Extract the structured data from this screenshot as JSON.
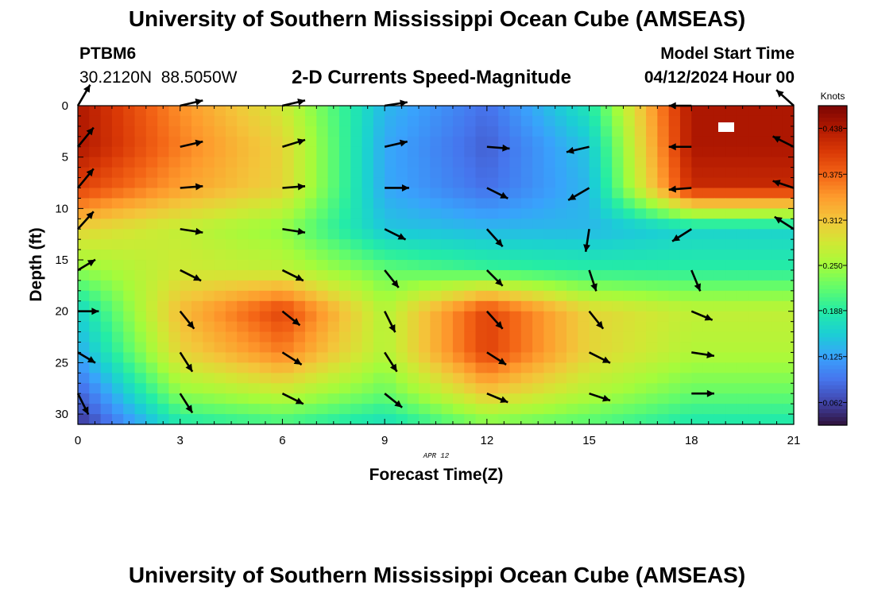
{
  "header": {
    "title": "University of Southern Mississippi Ocean Cube (AMSEAS)",
    "station": "PTBM6",
    "coords": "30.2120N  88.5050W",
    "subtitle": "2-D Currents Speed-Magnitude",
    "model_start_label": "Model Start Time",
    "model_start_value": "04/12/2024 Hour 00"
  },
  "footer": {
    "title": "University of Southern Mississippi Ocean Cube (AMSEAS)"
  },
  "chart_data": {
    "type": "heatmap",
    "title": "2-D Currents Speed-Magnitude",
    "xlabel": "Forecast Time(Z)",
    "ylabel": "Depth (ft)",
    "date_label": "APR 12",
    "xlim": [
      0,
      21
    ],
    "ylim": [
      31,
      0
    ],
    "x_ticks": [
      0,
      3,
      6,
      9,
      12,
      15,
      18,
      21
    ],
    "y_ticks": [
      0,
      5,
      10,
      15,
      20,
      25,
      30
    ],
    "colorbar": {
      "label": "Knots",
      "ticks": [
        "0.062",
        "0.125",
        "0.188",
        "0.250",
        "0.312",
        "0.375",
        "0.438"
      ],
      "min": 0.031,
      "max": 0.469,
      "colors": [
        "#30123b",
        "#4145ab",
        "#4675ed",
        "#39a2fc",
        "#1bcfd4",
        "#24eca6",
        "#61fc6c",
        "#a4fc3b",
        "#d1e834",
        "#f3c63a",
        "#fe9b2d",
        "#f36315",
        "#d93806",
        "#b11901",
        "#7a0403"
      ]
    },
    "speed_grid": {
      "times": [
        0,
        3,
        6,
        9,
        12,
        15,
        18,
        21
      ],
      "depths": [
        0,
        4,
        8,
        12,
        16,
        20,
        24,
        28,
        31
      ],
      "values": [
        [
          0.44,
          0.35,
          0.28,
          0.14,
          0.09,
          0.18,
          0.44,
          0.44
        ],
        [
          0.44,
          0.36,
          0.3,
          0.13,
          0.08,
          0.15,
          0.44,
          0.44
        ],
        [
          0.4,
          0.34,
          0.3,
          0.13,
          0.09,
          0.14,
          0.42,
          0.42
        ],
        [
          0.3,
          0.27,
          0.24,
          0.15,
          0.14,
          0.14,
          0.16,
          0.16
        ],
        [
          0.24,
          0.28,
          0.27,
          0.22,
          0.2,
          0.19,
          0.19,
          0.19
        ],
        [
          0.16,
          0.32,
          0.4,
          0.26,
          0.4,
          0.3,
          0.27,
          0.27
        ],
        [
          0.13,
          0.3,
          0.36,
          0.26,
          0.4,
          0.3,
          0.26,
          0.26
        ],
        [
          0.08,
          0.24,
          0.27,
          0.22,
          0.31,
          0.26,
          0.22,
          0.22
        ],
        [
          0.05,
          0.18,
          0.2,
          0.17,
          0.23,
          0.21,
          0.18,
          0.18
        ]
      ]
    },
    "vectors": [
      {
        "t": 0,
        "d": 0,
        "u": 0.35,
        "v": -0.6
      },
      {
        "t": 0,
        "d": 4,
        "u": 0.45,
        "v": -0.55
      },
      {
        "t": 0,
        "d": 8,
        "u": 0.45,
        "v": -0.55
      },
      {
        "t": 0,
        "d": 12,
        "u": 0.45,
        "v": -0.5
      },
      {
        "t": 0,
        "d": 16,
        "u": 0.5,
        "v": -0.3
      },
      {
        "t": 0,
        "d": 20,
        "u": 0.6,
        "v": 0
      },
      {
        "t": 0,
        "d": 24,
        "u": 0.5,
        "v": 0.3
      },
      {
        "t": 0,
        "d": 28,
        "u": 0.3,
        "v": 0.6
      },
      {
        "t": 3,
        "d": 0,
        "u": 0.65,
        "v": -0.15
      },
      {
        "t": 3,
        "d": 4,
        "u": 0.65,
        "v": -0.15
      },
      {
        "t": 3,
        "d": 8,
        "u": 0.65,
        "v": -0.05
      },
      {
        "t": 3,
        "d": 12,
        "u": 0.65,
        "v": 0.1
      },
      {
        "t": 3,
        "d": 16,
        "u": 0.6,
        "v": 0.3
      },
      {
        "t": 3,
        "d": 20,
        "u": 0.4,
        "v": 0.5
      },
      {
        "t": 3,
        "d": 24,
        "u": 0.35,
        "v": 0.55
      },
      {
        "t": 3,
        "d": 28,
        "u": 0.35,
        "v": 0.55
      },
      {
        "t": 6,
        "d": 0,
        "u": 0.65,
        "v": -0.15
      },
      {
        "t": 6,
        "d": 4,
        "u": 0.65,
        "v": -0.2
      },
      {
        "t": 6,
        "d": 8,
        "u": 0.65,
        "v": -0.05
      },
      {
        "t": 6,
        "d": 12,
        "u": 0.65,
        "v": 0.1
      },
      {
        "t": 6,
        "d": 16,
        "u": 0.6,
        "v": 0.3
      },
      {
        "t": 6,
        "d": 20,
        "u": 0.5,
        "v": 0.4
      },
      {
        "t": 6,
        "d": 24,
        "u": 0.55,
        "v": 0.35
      },
      {
        "t": 6,
        "d": 28,
        "u": 0.6,
        "v": 0.3
      },
      {
        "t": 9,
        "d": 0,
        "u": 0.65,
        "v": -0.1
      },
      {
        "t": 9,
        "d": 4,
        "u": 0.65,
        "v": -0.15
      },
      {
        "t": 9,
        "d": 8,
        "u": 0.7,
        "v": 0
      },
      {
        "t": 9,
        "d": 12,
        "u": 0.6,
        "v": 0.3
      },
      {
        "t": 9,
        "d": 16,
        "u": 0.4,
        "v": 0.5
      },
      {
        "t": 9,
        "d": 20,
        "u": 0.3,
        "v": 0.6
      },
      {
        "t": 9,
        "d": 24,
        "u": 0.35,
        "v": 0.55
      },
      {
        "t": 9,
        "d": 28,
        "u": 0.5,
        "v": 0.4
      },
      {
        "t": 12,
        "d": 4,
        "u": 0.65,
        "v": 0.05
      },
      {
        "t": 12,
        "d": 8,
        "u": 0.6,
        "v": 0.3
      },
      {
        "t": 12,
        "d": 12,
        "u": 0.45,
        "v": 0.5
      },
      {
        "t": 12,
        "d": 16,
        "u": 0.45,
        "v": 0.45
      },
      {
        "t": 12,
        "d": 20,
        "u": 0.45,
        "v": 0.5
      },
      {
        "t": 12,
        "d": 24,
        "u": 0.55,
        "v": 0.35
      },
      {
        "t": 12,
        "d": 28,
        "u": 0.6,
        "v": 0.25
      },
      {
        "t": 15,
        "d": 4,
        "u": -0.65,
        "v": 0.15
      },
      {
        "t": 15,
        "d": 8,
        "u": -0.6,
        "v": 0.35
      },
      {
        "t": 15,
        "d": 12,
        "u": -0.1,
        "v": 0.65
      },
      {
        "t": 15,
        "d": 16,
        "u": 0.2,
        "v": 0.6
      },
      {
        "t": 15,
        "d": 20,
        "u": 0.4,
        "v": 0.5
      },
      {
        "t": 15,
        "d": 24,
        "u": 0.6,
        "v": 0.3
      },
      {
        "t": 15,
        "d": 28,
        "u": 0.6,
        "v": 0.2
      },
      {
        "t": 18,
        "d": 0,
        "u": -0.65,
        "v": 0
      },
      {
        "t": 18,
        "d": 4,
        "u": -0.65,
        "v": 0
      },
      {
        "t": 18,
        "d": 8,
        "u": -0.65,
        "v": 0.05
      },
      {
        "t": 18,
        "d": 12,
        "u": -0.55,
        "v": 0.35
      },
      {
        "t": 18,
        "d": 16,
        "u": 0.25,
        "v": 0.6
      },
      {
        "t": 18,
        "d": 20,
        "u": 0.6,
        "v": 0.25
      },
      {
        "t": 18,
        "d": 24,
        "u": 0.65,
        "v": 0.1
      },
      {
        "t": 18,
        "d": 28,
        "u": 0.65,
        "v": 0
      },
      {
        "t": 21,
        "d": 0,
        "u": -0.5,
        "v": -0.45
      },
      {
        "t": 21,
        "d": 4,
        "u": -0.6,
        "v": -0.3
      },
      {
        "t": 21,
        "d": 8,
        "u": -0.6,
        "v": -0.2
      },
      {
        "t": 21,
        "d": 12,
        "u": -0.55,
        "v": -0.35
      }
    ]
  }
}
